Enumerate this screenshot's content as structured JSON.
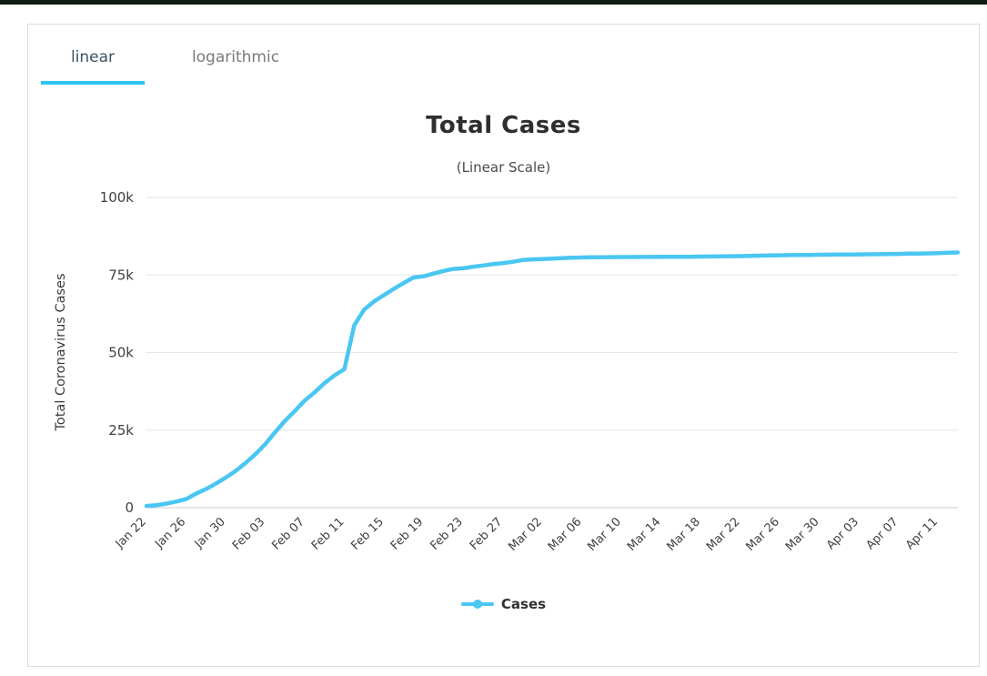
{
  "tabs": [
    {
      "label": "linear",
      "active": true
    },
    {
      "label": "logarithmic",
      "active": false
    }
  ],
  "colors": {
    "accent": "#2EC4F3",
    "series": "#4AC6F2",
    "grid": "#E6E6E6",
    "axis_line": "#CFCFCF",
    "tick_text": "#404040",
    "window_top_border": "#0E1C14"
  },
  "chart_data": {
    "type": "line",
    "title": "Total Cases",
    "subtitle": "(Linear Scale)",
    "xlabel": "",
    "ylabel": "Total Coronavirus Cases",
    "ylim": [
      0,
      100000
    ],
    "yticks": [
      0,
      25000,
      50000,
      75000,
      100000
    ],
    "ytick_labels": [
      "0",
      "25k",
      "50k",
      "75k",
      "100k"
    ],
    "xtick_every": 4,
    "grid": true,
    "legend_position": "bottom",
    "x": [
      "Jan 22",
      "Jan 23",
      "Jan 24",
      "Jan 25",
      "Jan 26",
      "Jan 27",
      "Jan 28",
      "Jan 29",
      "Jan 30",
      "Jan 31",
      "Feb 01",
      "Feb 02",
      "Feb 03",
      "Feb 04",
      "Feb 05",
      "Feb 06",
      "Feb 07",
      "Feb 08",
      "Feb 09",
      "Feb 10",
      "Feb 11",
      "Feb 12",
      "Feb 13",
      "Feb 14",
      "Feb 15",
      "Feb 16",
      "Feb 17",
      "Feb 18",
      "Feb 19",
      "Feb 20",
      "Feb 21",
      "Feb 22",
      "Feb 23",
      "Feb 24",
      "Feb 25",
      "Feb 26",
      "Feb 27",
      "Feb 28",
      "Feb 29",
      "Mar 01",
      "Mar 02",
      "Mar 03",
      "Mar 04",
      "Mar 05",
      "Mar 06",
      "Mar 07",
      "Mar 08",
      "Mar 09",
      "Mar 10",
      "Mar 11",
      "Mar 12",
      "Mar 13",
      "Mar 14",
      "Mar 15",
      "Mar 16",
      "Mar 17",
      "Mar 18",
      "Mar 19",
      "Mar 20",
      "Mar 21",
      "Mar 22",
      "Mar 23",
      "Mar 24",
      "Mar 25",
      "Mar 26",
      "Mar 27",
      "Mar 28",
      "Mar 29",
      "Mar 30",
      "Mar 31",
      "Apr 01",
      "Apr 02",
      "Apr 03",
      "Apr 04",
      "Apr 05",
      "Apr 06",
      "Apr 07",
      "Apr 08",
      "Apr 09",
      "Apr 10",
      "Apr 11",
      "Apr 12",
      "Apr 13"
    ],
    "series": [
      {
        "name": "Cases",
        "color": "#4AC6F2",
        "values": [
          571,
          830,
          1287,
          1975,
          2744,
          4515,
          5974,
          7711,
          9692,
          11791,
          14380,
          17205,
          20438,
          24324,
          28018,
          31161,
          34546,
          37198,
          40171,
          42638,
          44653,
          58761,
          63851,
          66492,
          68500,
          70548,
          72436,
          74185,
          74576,
          75465,
          76288,
          76936,
          77150,
          77658,
          78064,
          78497,
          78824,
          79251,
          79824,
          80026,
          80151,
          80270,
          80409,
          80552,
          80651,
          80695,
          80735,
          80754,
          80778,
          80793,
          80813,
          80824,
          80844,
          80860,
          80881,
          80894,
          80928,
          80967,
          81008,
          81054,
          81093,
          81171,
          81218,
          81285,
          81340,
          81394,
          81439,
          81470,
          81518,
          81554,
          81589,
          81620,
          81639,
          81669,
          81708,
          81740,
          81802,
          81865,
          81907,
          81953,
          82052,
          82160,
          82249
        ]
      }
    ]
  }
}
